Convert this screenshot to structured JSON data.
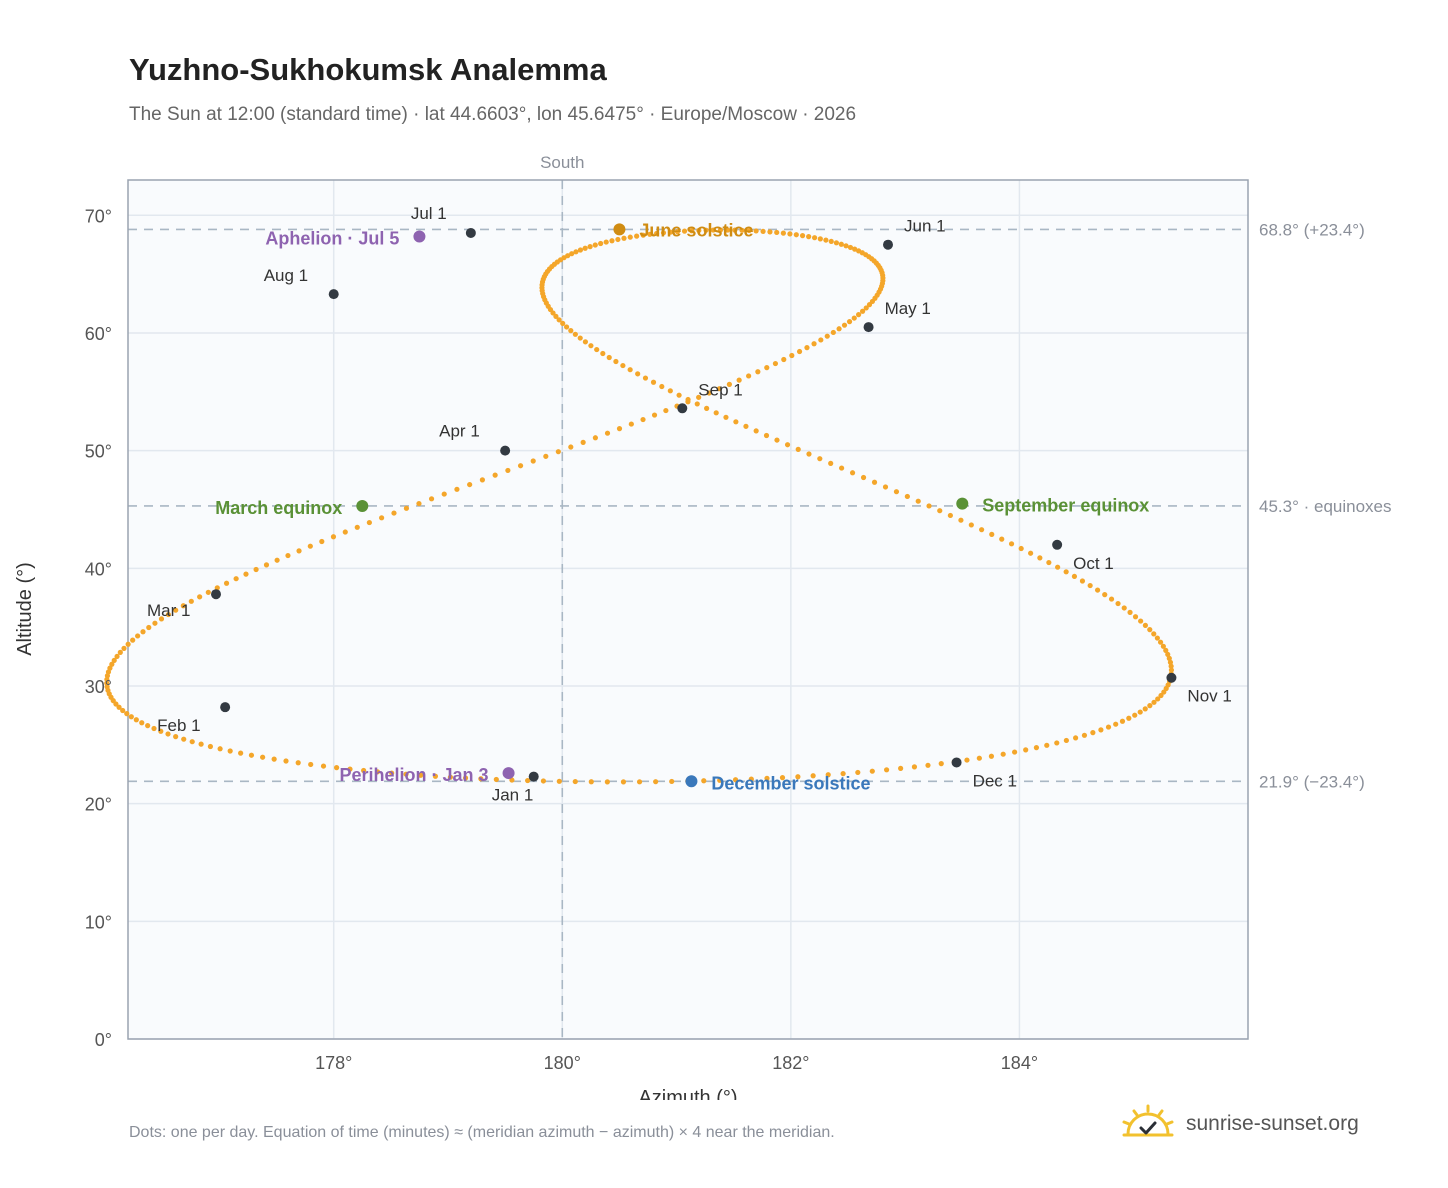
{
  "title": "Yuzhno-Sukhokumsk Analemma",
  "subtitle": "The Sun at 12:00 (standard time) · lat 44.6603°, lon 45.6475° · Europe/Moscow · 2026",
  "footnote": "Dots: one per day. Equation of time (minutes) ≈ (meridian azimuth − azimuth) × 4 near the meridian.",
  "brand": {
    "text": "sunrise-sunset.org",
    "icon": "sun-logo-icon"
  },
  "colors": {
    "path": "#f4a62a",
    "month_dot": "#333a42",
    "solstice_june": "#d08c12",
    "solstice_december": "#3a78bb",
    "equinox": "#5a9136",
    "apsis": "#8e63b0",
    "plot_bg": "#f9fbfd",
    "grid": "#e2e8ef",
    "border": "#9aa3b0",
    "ref_line": "#a9b7c4"
  },
  "chart_data": {
    "type": "scatter",
    "xlabel": "Azimuth (°)",
    "ylabel": "Altitude (°)",
    "xlim": [
      176.2,
      186.0
    ],
    "ylim": [
      0,
      73
    ],
    "xticks": [
      178,
      180,
      182,
      184
    ],
    "xtick_labels": [
      "178°",
      "180°",
      "182°",
      "184°"
    ],
    "yticks": [
      0,
      10,
      20,
      30,
      40,
      50,
      60,
      70
    ],
    "ytick_labels": [
      "0°",
      "10°",
      "20°",
      "30°",
      "40°",
      "50°",
      "60°",
      "70°"
    ],
    "grid": true,
    "meridian": {
      "azimuth": 180,
      "label": "South"
    },
    "reference_lines": [
      {
        "altitude": 68.8,
        "label": "68.8° (+23.4°)"
      },
      {
        "altitude": 45.3,
        "label": "45.3° · equinoxes"
      },
      {
        "altitude": 21.9,
        "label": "21.9° (−23.4°)"
      }
    ],
    "analemma_shape": {
      "center_altitude": 45.3,
      "declination_amplitude": 23.45,
      "meridian_azimuth": 180.95,
      "azimuth_scale": 0.3
    },
    "month_markers": [
      {
        "label": "Jan 1",
        "azimuth": 179.75,
        "altitude": 22.3
      },
      {
        "label": "Feb 1",
        "azimuth": 177.05,
        "altitude": 28.2
      },
      {
        "label": "Mar 1",
        "azimuth": 176.97,
        "altitude": 37.8
      },
      {
        "label": "Apr 1",
        "azimuth": 179.5,
        "altitude": 50.0
      },
      {
        "label": "May 1",
        "azimuth": 182.68,
        "altitude": 60.5
      },
      {
        "label": "Jun 1",
        "azimuth": 182.85,
        "altitude": 67.5
      },
      {
        "label": "Jul 1",
        "azimuth": 179.2,
        "altitude": 68.5
      },
      {
        "label": "Aug 1",
        "azimuth": 178.0,
        "altitude": 63.3
      },
      {
        "label": "Sep 1",
        "azimuth": 181.05,
        "altitude": 53.6
      },
      {
        "label": "Oct 1",
        "azimuth": 184.33,
        "altitude": 42.0
      },
      {
        "label": "Nov 1",
        "azimuth": 185.33,
        "altitude": 30.7
      },
      {
        "label": "Dec 1",
        "azimuth": 183.45,
        "altitude": 23.5
      }
    ],
    "events": [
      {
        "label": "June solstice",
        "azimuth": 180.5,
        "altitude": 68.8,
        "color": "#d08c12"
      },
      {
        "label": "December solstice",
        "azimuth": 181.13,
        "altitude": 21.9,
        "color": "#3a78bb"
      },
      {
        "label": "March equinox",
        "azimuth": 178.25,
        "altitude": 45.3,
        "color": "#5a9136"
      },
      {
        "label": "September equinox",
        "azimuth": 183.5,
        "altitude": 45.5,
        "color": "#5a9136"
      },
      {
        "label": "Aphelion · Jul 5",
        "azimuth": 178.75,
        "altitude": 68.2,
        "color": "#8e63b0"
      },
      {
        "label": "Perihelion · Jan 3",
        "azimuth": 179.53,
        "altitude": 22.6,
        "color": "#8e63b0"
      }
    ]
  }
}
